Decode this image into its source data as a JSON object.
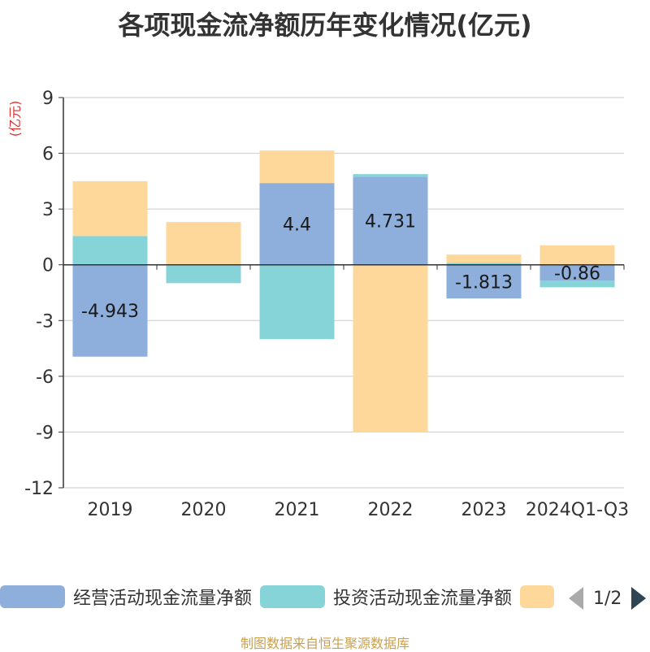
{
  "title": "各项现金流净额历年变化情况(亿元)",
  "footer": "制图数据来自恒生聚源数据库",
  "legend": {
    "items": [
      {
        "label": "经营活动现金流量净额",
        "color": "#8eaedb"
      },
      {
        "label": "投资活动现金流量净额",
        "color": "#86d4d8"
      },
      {
        "label": "",
        "color": "#fdd89a"
      }
    ],
    "page": "1/2"
  },
  "chart_data": {
    "type": "bar",
    "stacked": true,
    "ylabel": "(亿元)",
    "ylim": [
      -12,
      9
    ],
    "yticks": [
      9,
      6,
      3,
      0,
      -3,
      -6,
      -9,
      -12
    ],
    "grid": true,
    "categories": [
      "2019",
      "2020",
      "2021",
      "2022",
      "2023",
      "2024Q1-Q3"
    ],
    "series": [
      {
        "name": "经营活动现金流量净额",
        "color": "#8eaedb",
        "values": [
          -4.943,
          -0.04,
          4.4,
          4.731,
          -1.813,
          -0.86
        ],
        "labels": [
          "-4.943",
          "",
          "4.4",
          "4.731",
          "-1.813",
          "-0.86"
        ]
      },
      {
        "name": "投资活动现金流量净额",
        "color": "#86d4d8",
        "values": [
          1.55,
          -0.95,
          -4.0,
          0.15,
          0.1,
          -0.35
        ]
      },
      {
        "name": "",
        "color": "#fdd89a",
        "values": [
          2.95,
          2.3,
          1.75,
          -9.0,
          0.45,
          1.05
        ]
      }
    ]
  }
}
